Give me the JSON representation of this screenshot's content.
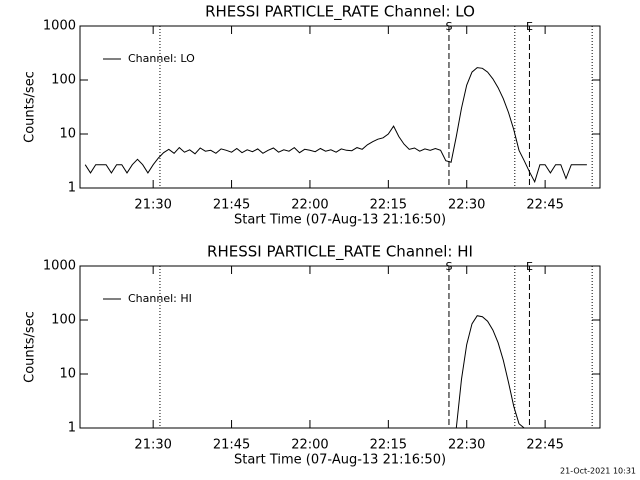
{
  "chart_data": [
    {
      "type": "line",
      "title": "RHESSI PARTICLE_RATE Channel: LO",
      "xlabel": "Start Time (07-Aug-13 21:16:50)",
      "ylabel": "Counts/sec",
      "log_y": true,
      "legend": "upper left",
      "ylim": [
        1,
        1000
      ],
      "yticks": [
        1,
        10,
        100,
        1000
      ],
      "xlim": [
        1276,
        1375.5
      ],
      "xticks": [
        {
          "value": 1290,
          "label": "21:30"
        },
        {
          "value": 1305,
          "label": "21:45"
        },
        {
          "value": 1320,
          "label": "22:00"
        },
        {
          "value": 1335,
          "label": "22:15"
        },
        {
          "value": 1350,
          "label": "22:30"
        },
        {
          "value": 1365,
          "label": "22:45"
        }
      ],
      "vlines": [
        {
          "x": 1291.3,
          "style": "dotted"
        },
        {
          "x": 1346.6,
          "style": "dashed",
          "label": "S"
        },
        {
          "x": 1359.2,
          "style": "dotted"
        },
        {
          "x": 1362,
          "style": "dashed",
          "label": "E"
        },
        {
          "x": 1374,
          "style": "dotted"
        }
      ],
      "x": [
        1277,
        1278,
        1279,
        1280,
        1281,
        1282,
        1283,
        1284,
        1285,
        1286,
        1287,
        1288,
        1289,
        1290,
        1291,
        1292,
        1293,
        1294,
        1295,
        1296,
        1297,
        1298,
        1299,
        1300,
        1301,
        1302,
        1303,
        1304,
        1305,
        1306,
        1307,
        1308,
        1309,
        1310,
        1311,
        1312,
        1313,
        1314,
        1315,
        1316,
        1317,
        1318,
        1319,
        1320,
        1321,
        1322,
        1323,
        1324,
        1325,
        1326,
        1327,
        1328,
        1329,
        1330,
        1331,
        1332,
        1333,
        1334,
        1335,
        1336,
        1337,
        1338,
        1339,
        1340,
        1341,
        1342,
        1343,
        1344,
        1345,
        1346,
        1347,
        1348,
        1349,
        1350,
        1351,
        1352,
        1353,
        1354,
        1355,
        1356,
        1357,
        1358,
        1359,
        1360,
        1361,
        1362,
        1363,
        1364,
        1365,
        1366,
        1367,
        1368,
        1369,
        1370,
        1371,
        1372,
        1373
      ],
      "series": [
        {
          "name": "Channel: LO",
          "color": "#000000",
          "values": [
            2.7,
            1.9,
            2.7,
            2.7,
            2.7,
            1.9,
            2.7,
            2.7,
            1.9,
            2.7,
            3.4,
            2.7,
            1.9,
            2.7,
            3.6,
            4.5,
            5.2,
            4.4,
            5.6,
            4.6,
            5.1,
            4.3,
            5.5,
            4.8,
            5.0,
            4.4,
            5.3,
            5.0,
            4.6,
            5.4,
            4.5,
            5.1,
            4.7,
            5.3,
            4.4,
            5.0,
            5.5,
            4.6,
            5.1,
            4.8,
            5.6,
            4.5,
            5.2,
            5.0,
            4.7,
            5.4,
            4.8,
            5.1,
            4.6,
            5.3,
            5.0,
            4.9,
            5.6,
            5.2,
            6.3,
            7.2,
            8.0,
            8.5,
            10,
            14,
            9,
            6.5,
            5.2,
            5.5,
            4.8,
            5.3,
            5.0,
            5.4,
            5.0,
            3.2,
            3.0,
            9,
            30,
            80,
            140,
            170,
            165,
            140,
            105,
            72,
            45,
            25,
            12,
            5,
            3.2,
            2.0,
            1.3,
            2.7,
            2.7,
            1.9,
            2.7,
            2.7,
            1.5,
            2.7,
            2.7,
            2.7,
            2.7
          ]
        }
      ]
    },
    {
      "type": "line",
      "title": "RHESSI PARTICLE_RATE Channel: HI",
      "xlabel": "Start Time (07-Aug-13 21:16:50)",
      "ylabel": "Counts/sec",
      "log_y": true,
      "legend": "upper left",
      "ylim": [
        1,
        1000
      ],
      "yticks": [
        1,
        10,
        100,
        1000
      ],
      "xlim": [
        1276,
        1375.5
      ],
      "xticks": [
        {
          "value": 1290,
          "label": "21:30"
        },
        {
          "value": 1305,
          "label": "21:45"
        },
        {
          "value": 1320,
          "label": "22:00"
        },
        {
          "value": 1335,
          "label": "22:15"
        },
        {
          "value": 1350,
          "label": "22:30"
        },
        {
          "value": 1365,
          "label": "22:45"
        }
      ],
      "vlines": [
        {
          "x": 1291.3,
          "style": "dotted"
        },
        {
          "x": 1346.6,
          "style": "dashed",
          "label": "S"
        },
        {
          "x": 1359.2,
          "style": "dotted"
        },
        {
          "x": 1362,
          "style": "dashed",
          "label": "E"
        },
        {
          "x": 1374,
          "style": "dotted"
        }
      ],
      "x": [
        1348,
        1349,
        1350,
        1351,
        1352,
        1353,
        1354,
        1355,
        1356,
        1357,
        1358,
        1359,
        1360,
        1361
      ],
      "series": [
        {
          "name": "Channel: HI",
          "color": "#000000",
          "values": [
            1,
            8,
            35,
            85,
            120,
            115,
            95,
            65,
            38,
            18,
            7,
            2.5,
            1.2,
            1
          ]
        }
      ]
    }
  ],
  "footer": "21-Oct-2021 10:31"
}
